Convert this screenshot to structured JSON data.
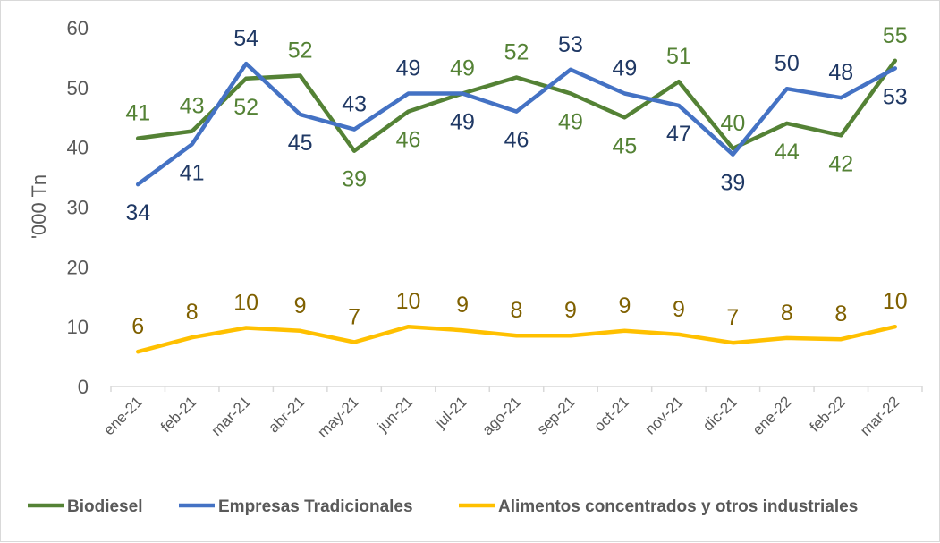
{
  "chart_data": {
    "type": "line",
    "categories": [
      "ene-21",
      "feb-21",
      "mar-21",
      "abr-21",
      "may-21",
      "jun-21",
      "jul-21",
      "ago-21",
      "sep-21",
      "oct-21",
      "nov-21",
      "dic-21",
      "ene-22",
      "feb-22",
      "mar-22"
    ],
    "ylabel": "'000 Tn",
    "xlabel": "",
    "ylim": [
      0,
      60
    ],
    "yticks": [
      0,
      10,
      20,
      30,
      40,
      50,
      60
    ],
    "grid": false,
    "legend_position": "bottom",
    "series": [
      {
        "name": "Biodiesel",
        "color": "#548235",
        "values": [
          41.5,
          42.7,
          51.5,
          52.0,
          39.4,
          46.0,
          49.0,
          51.7,
          49.0,
          45.0,
          51.0,
          39.8,
          44.0,
          42.0,
          54.5
        ],
        "labels": [
          "41",
          "43",
          "52",
          "52",
          "39",
          "46",
          "49",
          "52",
          "49",
          "45",
          "51",
          "40",
          "44",
          "42",
          "55"
        ],
        "label_pos": [
          "above",
          "above",
          "below",
          "above",
          "below",
          "below",
          "above",
          "above",
          "below",
          "below",
          "above",
          "above",
          "below",
          "below",
          "above"
        ]
      },
      {
        "name": "Empresas Tradicionales",
        "color": "#4472C4",
        "values": [
          33.8,
          40.5,
          54.0,
          45.5,
          43.0,
          49.0,
          49.0,
          46.0,
          53.0,
          49.0,
          47.0,
          38.8,
          49.8,
          48.3,
          53.2
        ],
        "labels": [
          "34",
          "41",
          "54",
          "45",
          "43",
          "49",
          "49",
          "46",
          "53",
          "49",
          "47",
          "39",
          "50",
          "48",
          "53"
        ],
        "label_pos": [
          "below",
          "below",
          "above",
          "below",
          "above",
          "above",
          "below",
          "below",
          "above",
          "above",
          "below",
          "below",
          "above",
          "above",
          "below"
        ]
      },
      {
        "name": "Alimentos concentrados y otros industriales",
        "color": "#FFC000",
        "label_color": "#7F6000",
        "values": [
          5.8,
          8.2,
          9.8,
          9.3,
          7.4,
          10.0,
          9.4,
          8.5,
          8.5,
          9.3,
          8.7,
          7.3,
          8.1,
          7.9,
          10.0
        ],
        "labels": [
          "6",
          "8",
          "10",
          "9",
          "7",
          "10",
          "9",
          "8",
          "9",
          "9",
          "9",
          "7",
          "8",
          "8",
          "10"
        ],
        "label_pos": [
          "above",
          "above",
          "above",
          "above",
          "above",
          "above",
          "above",
          "above",
          "above",
          "above",
          "above",
          "above",
          "above",
          "above",
          "above"
        ]
      }
    ]
  }
}
